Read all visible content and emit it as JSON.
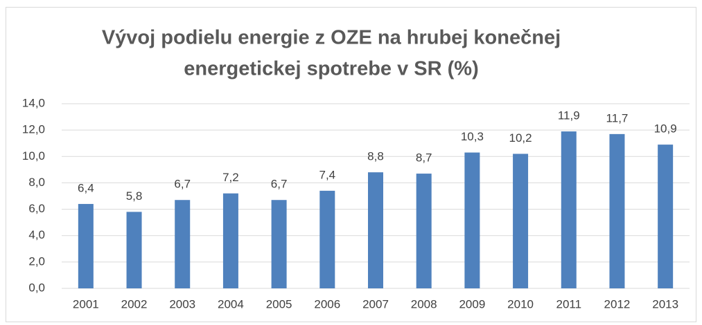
{
  "chart_data": {
    "type": "bar",
    "title": [
      "Vývoj podielu energie z OZE na hrubej konečnej",
      "energetickej spotrebe v SR (%)"
    ],
    "categories": [
      "2001",
      "2002",
      "2003",
      "2004",
      "2005",
      "2006",
      "2007",
      "2008",
      "2009",
      "2010",
      "2011",
      "2012",
      "2013"
    ],
    "values": [
      6.4,
      5.8,
      6.7,
      7.2,
      6.7,
      7.4,
      8.8,
      8.7,
      10.3,
      10.2,
      11.9,
      11.7,
      10.9
    ],
    "value_labels": [
      "6,4",
      "5,8",
      "6,7",
      "7,2",
      "6,7",
      "7,4",
      "8,8",
      "8,7",
      "10,3",
      "10,2",
      "11,9",
      "11,7",
      "10,9"
    ],
    "color": "#4f81bd",
    "ylim": [
      0,
      14
    ],
    "yticks": [
      {
        "value": 0,
        "label": "0,0"
      },
      {
        "value": 2,
        "label": "2,0"
      },
      {
        "value": 4,
        "label": "4,0"
      },
      {
        "value": 6,
        "label": "6,0"
      },
      {
        "value": 8,
        "label": "8,0"
      },
      {
        "value": 10,
        "label": "10,0"
      },
      {
        "value": 12,
        "label": "12,0"
      },
      {
        "value": 14,
        "label": "14,0"
      }
    ],
    "grid": true
  }
}
